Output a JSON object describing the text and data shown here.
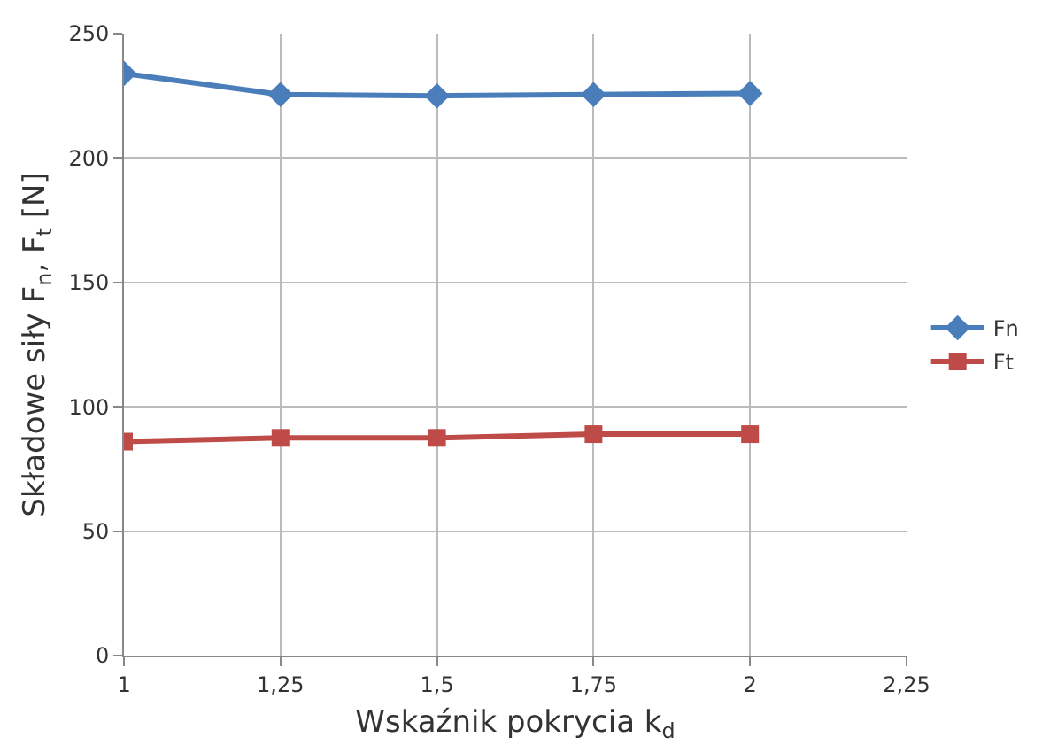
{
  "chart_data": {
    "type": "line",
    "xlabel": "Wskaźnik pokrycia k$_{d}$",
    "ylabel": "Składowe siły F$_{n}$, F$_{t}$ [N]",
    "x": [
      1,
      1.25,
      1.5,
      1.75,
      2
    ],
    "series": [
      {
        "name": "Fn",
        "color": "#4a7ebb",
        "marker": "diamond",
        "values": [
          234,
          225.5,
          225,
          225.5,
          226
        ]
      },
      {
        "name": "Ft",
        "color": "#be4b48",
        "marker": "square",
        "values": [
          86,
          87.5,
          87.5,
          89,
          89
        ]
      }
    ],
    "xlim": [
      1,
      2.25
    ],
    "xticks": [
      {
        "value": 1,
        "label": "1"
      },
      {
        "value": 1.25,
        "label": "1,25"
      },
      {
        "value": 1.5,
        "label": "1,5"
      },
      {
        "value": 1.75,
        "label": "1,75"
      },
      {
        "value": 2,
        "label": "2"
      },
      {
        "value": 2.25,
        "label": "2,25"
      }
    ],
    "ylim": [
      0,
      250
    ],
    "yticks": [
      0,
      50,
      100,
      150,
      200,
      250
    ],
    "grid": true,
    "legend": "right",
    "line_style": "solid"
  }
}
